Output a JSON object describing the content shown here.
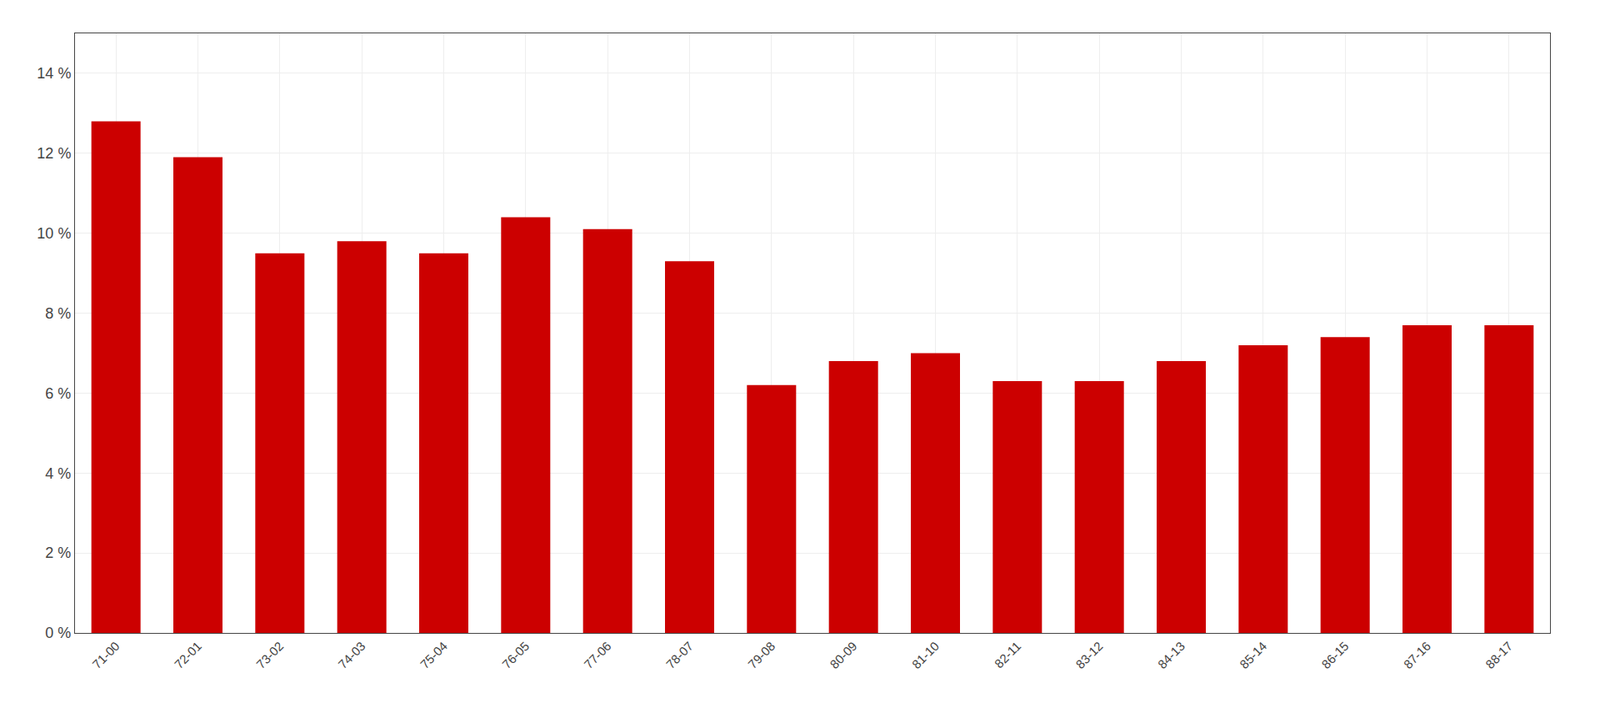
{
  "chart_data": {
    "type": "bar",
    "categories": [
      "71-00",
      "72-01",
      "73-02",
      "74-03",
      "75-04",
      "76-05",
      "77-06",
      "78-07",
      "79-08",
      "80-09",
      "81-10",
      "82-11",
      "83-12",
      "84-13",
      "85-14",
      "86-15",
      "87-16",
      "88-17"
    ],
    "values": [
      12.8,
      11.9,
      9.5,
      9.8,
      9.5,
      10.4,
      10.1,
      9.3,
      6.2,
      6.8,
      7.0,
      6.3,
      6.3,
      6.8,
      7.2,
      7.4,
      7.7,
      7.7
    ],
    "color": "#CC0000",
    "ylim": [
      0,
      15.0
    ],
    "yticks": [
      {
        "value": 0,
        "label": "0 %"
      },
      {
        "value": 2,
        "label": "2 %"
      },
      {
        "value": 4,
        "label": "4 %"
      },
      {
        "value": 6,
        "label": "6 %"
      },
      {
        "value": 8,
        "label": "8 %"
      },
      {
        "value": 10,
        "label": "10 %"
      },
      {
        "value": 12,
        "label": "12 %"
      },
      {
        "value": 14,
        "label": "14 %"
      }
    ],
    "grid": true
  }
}
